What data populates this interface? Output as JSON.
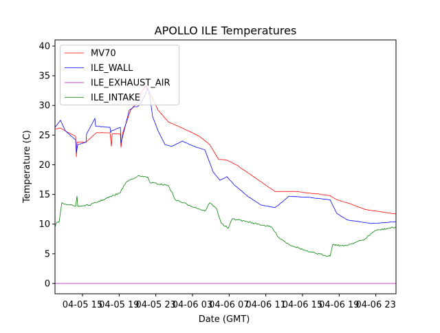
{
  "chart_data": {
    "type": "line",
    "title": "APOLLO ILE Temperatures",
    "xlabel": "Date (GMT)",
    "ylabel": "Temperature (C)",
    "x_units": "hours since 04-05 00:00 GMT",
    "xlim": [
      12.0,
      49.2
    ],
    "ylim": [
      -1.74,
      41.04
    ],
    "yticks": [
      0,
      5,
      10,
      15,
      20,
      25,
      30,
      35,
      40
    ],
    "xticks": [
      {
        "value": 15,
        "label": "04-05 15"
      },
      {
        "value": 19,
        "label": "04-05 19"
      },
      {
        "value": 23,
        "label": "04-05 23"
      },
      {
        "value": 27,
        "label": "04-06 03"
      },
      {
        "value": 31,
        "label": "04-06 07"
      },
      {
        "value": 35,
        "label": "04-06 11"
      },
      {
        "value": 39,
        "label": "04-06 15"
      },
      {
        "value": 43,
        "label": "04-06 19"
      },
      {
        "value": 47,
        "label": "04-06 23"
      }
    ],
    "legend_position": "top-left",
    "grid": false,
    "series": [
      {
        "name": "MV70",
        "color": "#ff0000",
        "x": [
          12.0,
          12.6,
          13.13,
          14.25,
          14.33,
          14.4,
          15.38,
          16.5,
          18.0,
          18.15,
          18.23,
          19.13,
          19.2,
          19.35,
          20.25,
          21.0,
          21.38,
          21.9,
          22.35,
          23.25,
          24.38,
          25.88,
          27.75,
          28.88,
          29.85,
          30.75,
          31.88,
          33.75,
          34.88,
          36.0,
          38.25,
          40.5,
          42.0,
          42.75,
          44.25,
          45.75,
          49.2
        ],
        "y": [
          26.0,
          26.2,
          25.7,
          24.8,
          21.3,
          23.8,
          23.8,
          25.4,
          25.4,
          23.1,
          25.2,
          25.2,
          22.9,
          25.2,
          29.2,
          30.6,
          32.1,
          33.3,
          32.1,
          29.2,
          27.2,
          26.2,
          24.8,
          23.4,
          20.9,
          20.8,
          19.9,
          17.9,
          16.7,
          15.5,
          15.5,
          15.1,
          14.8,
          14.1,
          13.4,
          12.5,
          11.7
        ]
      },
      {
        "name": "ILE_WALL",
        "color": "#0000ff",
        "x": [
          12.0,
          12.6,
          13.13,
          14.25,
          14.33,
          14.48,
          15.38,
          15.45,
          16.35,
          16.43,
          18.0,
          18.08,
          18.15,
          19.13,
          19.2,
          19.35,
          20.1,
          20.63,
          21.0,
          21.38,
          21.75,
          22.13,
          22.35,
          22.65,
          23.25,
          24.0,
          24.75,
          25.88,
          27.0,
          28.35,
          29.25,
          30.0,
          30.75,
          31.5,
          33.0,
          34.5,
          36.0,
          36.38,
          37.5,
          39.75,
          42.0,
          42.75,
          43.88,
          46.5,
          49.2
        ],
        "y": [
          26.3,
          27.5,
          25.7,
          24.2,
          22.0,
          23.4,
          23.8,
          25.2,
          27.8,
          26.5,
          26.3,
          25.4,
          25.7,
          26.3,
          23.7,
          24.6,
          29.2,
          29.8,
          29.8,
          30.4,
          31.5,
          32.9,
          31.5,
          28.1,
          25.7,
          23.4,
          23.1,
          24.0,
          23.2,
          22.5,
          18.8,
          17.4,
          18.0,
          16.7,
          14.7,
          13.2,
          12.8,
          13.2,
          14.7,
          14.5,
          14.1,
          11.8,
          10.7,
          10.1,
          10.4
        ]
      },
      {
        "name": "ILE_EXHAUST_AIR",
        "color": "#bf00bf",
        "x": [
          12.0,
          49.2
        ],
        "y": [
          0.0,
          0.0
        ]
      },
      {
        "name": "ILE_INTAKE",
        "color": "#008000",
        "x": [
          12.0,
          12.15,
          12.45,
          12.75,
          14.25,
          14.4,
          14.48,
          15.75,
          17.25,
          19.13,
          19.5,
          19.88,
          21.0,
          22.13,
          22.35,
          24.38,
          25.13,
          26.63,
          28.35,
          28.88,
          29.63,
          30.15,
          30.9,
          31.35,
          33.0,
          35.63,
          36.38,
          37.5,
          39.75,
          42.0,
          42.3,
          43.5,
          45.75,
          46.88,
          49.2
        ],
        "y": [
          9.5,
          10.2,
          10.3,
          13.6,
          13.0,
          14.7,
          13.0,
          13.2,
          14.1,
          15.3,
          16.5,
          17.2,
          18.1,
          17.9,
          17.0,
          16.5,
          14.1,
          13.2,
          12.2,
          13.6,
          12.6,
          10.1,
          9.3,
          10.9,
          10.4,
          9.5,
          7.8,
          6.6,
          5.3,
          4.6,
          6.6,
          6.3,
          7.4,
          8.9,
          9.5
        ]
      }
    ]
  }
}
